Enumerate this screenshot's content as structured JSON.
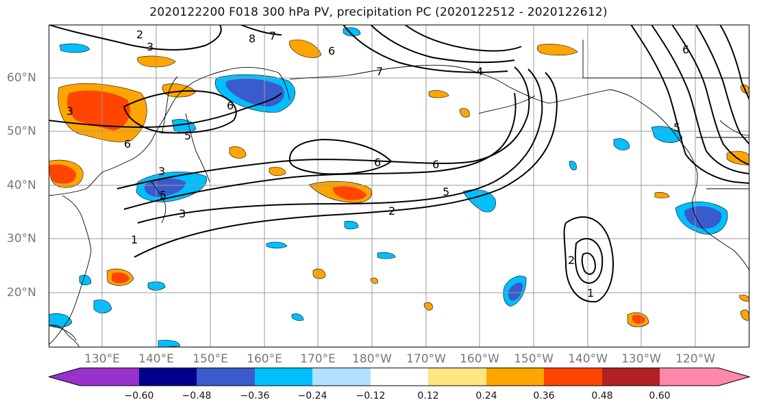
{
  "title": "2020122200 F018 300 hPa PV, precipitation PC (2020122512 - 2020122612)",
  "lat_labels": [
    "60°N",
    "50°N",
    "40°N",
    "30°N",
    "20°N"
  ],
  "lon_labels": [
    "130°E",
    "140°E",
    "150°E",
    "160°E",
    "170°E",
    "180°W",
    "170°W",
    "160°W",
    "150°W",
    "140°W",
    "130°W",
    "120°W"
  ],
  "contour_labels": [
    "2",
    "3",
    "8",
    "7",
    "6",
    "7",
    "4",
    "3",
    "6",
    "3",
    "6",
    "5",
    "5",
    "6",
    "6",
    "5",
    "2",
    "3",
    "1",
    "2",
    "1",
    "6",
    "5"
  ],
  "colorbar": {
    "ticks": [
      "−0.60",
      "−0.48",
      "−0.36",
      "−0.24",
      "−0.12",
      "0.12",
      "0.24",
      "0.36",
      "0.48",
      "0.60"
    ],
    "colors": [
      "#9932cc",
      "#00008b",
      "#3a5bcc",
      "#00bfff",
      "#b0e2ff",
      "#ffffff",
      "#ffe680",
      "#ffa500",
      "#ff4500",
      "#b22222",
      "#ff88aa"
    ]
  }
}
